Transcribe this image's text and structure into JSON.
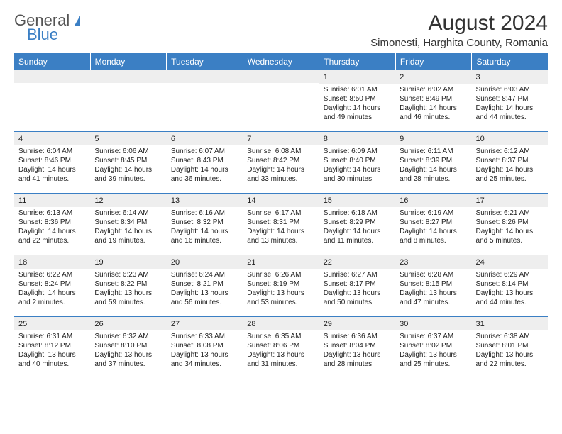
{
  "logo": {
    "line1": "General",
    "line2": "Blue"
  },
  "title": "August 2024",
  "subtitle": "Simonesti, Harghita County, Romania",
  "colors": {
    "header_bg": "#3b7fc4",
    "header_text": "#ffffff",
    "daynum_bg": "#eeeeee",
    "text": "#222222",
    "border": "#3b7fc4"
  },
  "weekdays": [
    "Sunday",
    "Monday",
    "Tuesday",
    "Wednesday",
    "Thursday",
    "Friday",
    "Saturday"
  ],
  "weeks": [
    [
      {
        "n": "",
        "sr": "",
        "ss": "",
        "dl": "",
        "dl2": ""
      },
      {
        "n": "",
        "sr": "",
        "ss": "",
        "dl": "",
        "dl2": ""
      },
      {
        "n": "",
        "sr": "",
        "ss": "",
        "dl": "",
        "dl2": ""
      },
      {
        "n": "",
        "sr": "",
        "ss": "",
        "dl": "",
        "dl2": ""
      },
      {
        "n": "1",
        "sr": "Sunrise: 6:01 AM",
        "ss": "Sunset: 8:50 PM",
        "dl": "Daylight: 14 hours",
        "dl2": "and 49 minutes."
      },
      {
        "n": "2",
        "sr": "Sunrise: 6:02 AM",
        "ss": "Sunset: 8:49 PM",
        "dl": "Daylight: 14 hours",
        "dl2": "and 46 minutes."
      },
      {
        "n": "3",
        "sr": "Sunrise: 6:03 AM",
        "ss": "Sunset: 8:47 PM",
        "dl": "Daylight: 14 hours",
        "dl2": "and 44 minutes."
      }
    ],
    [
      {
        "n": "4",
        "sr": "Sunrise: 6:04 AM",
        "ss": "Sunset: 8:46 PM",
        "dl": "Daylight: 14 hours",
        "dl2": "and 41 minutes."
      },
      {
        "n": "5",
        "sr": "Sunrise: 6:06 AM",
        "ss": "Sunset: 8:45 PM",
        "dl": "Daylight: 14 hours",
        "dl2": "and 39 minutes."
      },
      {
        "n": "6",
        "sr": "Sunrise: 6:07 AM",
        "ss": "Sunset: 8:43 PM",
        "dl": "Daylight: 14 hours",
        "dl2": "and 36 minutes."
      },
      {
        "n": "7",
        "sr": "Sunrise: 6:08 AM",
        "ss": "Sunset: 8:42 PM",
        "dl": "Daylight: 14 hours",
        "dl2": "and 33 minutes."
      },
      {
        "n": "8",
        "sr": "Sunrise: 6:09 AM",
        "ss": "Sunset: 8:40 PM",
        "dl": "Daylight: 14 hours",
        "dl2": "and 30 minutes."
      },
      {
        "n": "9",
        "sr": "Sunrise: 6:11 AM",
        "ss": "Sunset: 8:39 PM",
        "dl": "Daylight: 14 hours",
        "dl2": "and 28 minutes."
      },
      {
        "n": "10",
        "sr": "Sunrise: 6:12 AM",
        "ss": "Sunset: 8:37 PM",
        "dl": "Daylight: 14 hours",
        "dl2": "and 25 minutes."
      }
    ],
    [
      {
        "n": "11",
        "sr": "Sunrise: 6:13 AM",
        "ss": "Sunset: 8:36 PM",
        "dl": "Daylight: 14 hours",
        "dl2": "and 22 minutes."
      },
      {
        "n": "12",
        "sr": "Sunrise: 6:14 AM",
        "ss": "Sunset: 8:34 PM",
        "dl": "Daylight: 14 hours",
        "dl2": "and 19 minutes."
      },
      {
        "n": "13",
        "sr": "Sunrise: 6:16 AM",
        "ss": "Sunset: 8:32 PM",
        "dl": "Daylight: 14 hours",
        "dl2": "and 16 minutes."
      },
      {
        "n": "14",
        "sr": "Sunrise: 6:17 AM",
        "ss": "Sunset: 8:31 PM",
        "dl": "Daylight: 14 hours",
        "dl2": "and 13 minutes."
      },
      {
        "n": "15",
        "sr": "Sunrise: 6:18 AM",
        "ss": "Sunset: 8:29 PM",
        "dl": "Daylight: 14 hours",
        "dl2": "and 11 minutes."
      },
      {
        "n": "16",
        "sr": "Sunrise: 6:19 AM",
        "ss": "Sunset: 8:27 PM",
        "dl": "Daylight: 14 hours",
        "dl2": "and 8 minutes."
      },
      {
        "n": "17",
        "sr": "Sunrise: 6:21 AM",
        "ss": "Sunset: 8:26 PM",
        "dl": "Daylight: 14 hours",
        "dl2": "and 5 minutes."
      }
    ],
    [
      {
        "n": "18",
        "sr": "Sunrise: 6:22 AM",
        "ss": "Sunset: 8:24 PM",
        "dl": "Daylight: 14 hours",
        "dl2": "and 2 minutes."
      },
      {
        "n": "19",
        "sr": "Sunrise: 6:23 AM",
        "ss": "Sunset: 8:22 PM",
        "dl": "Daylight: 13 hours",
        "dl2": "and 59 minutes."
      },
      {
        "n": "20",
        "sr": "Sunrise: 6:24 AM",
        "ss": "Sunset: 8:21 PM",
        "dl": "Daylight: 13 hours",
        "dl2": "and 56 minutes."
      },
      {
        "n": "21",
        "sr": "Sunrise: 6:26 AM",
        "ss": "Sunset: 8:19 PM",
        "dl": "Daylight: 13 hours",
        "dl2": "and 53 minutes."
      },
      {
        "n": "22",
        "sr": "Sunrise: 6:27 AM",
        "ss": "Sunset: 8:17 PM",
        "dl": "Daylight: 13 hours",
        "dl2": "and 50 minutes."
      },
      {
        "n": "23",
        "sr": "Sunrise: 6:28 AM",
        "ss": "Sunset: 8:15 PM",
        "dl": "Daylight: 13 hours",
        "dl2": "and 47 minutes."
      },
      {
        "n": "24",
        "sr": "Sunrise: 6:29 AM",
        "ss": "Sunset: 8:14 PM",
        "dl": "Daylight: 13 hours",
        "dl2": "and 44 minutes."
      }
    ],
    [
      {
        "n": "25",
        "sr": "Sunrise: 6:31 AM",
        "ss": "Sunset: 8:12 PM",
        "dl": "Daylight: 13 hours",
        "dl2": "and 40 minutes."
      },
      {
        "n": "26",
        "sr": "Sunrise: 6:32 AM",
        "ss": "Sunset: 8:10 PM",
        "dl": "Daylight: 13 hours",
        "dl2": "and 37 minutes."
      },
      {
        "n": "27",
        "sr": "Sunrise: 6:33 AM",
        "ss": "Sunset: 8:08 PM",
        "dl": "Daylight: 13 hours",
        "dl2": "and 34 minutes."
      },
      {
        "n": "28",
        "sr": "Sunrise: 6:35 AM",
        "ss": "Sunset: 8:06 PM",
        "dl": "Daylight: 13 hours",
        "dl2": "and 31 minutes."
      },
      {
        "n": "29",
        "sr": "Sunrise: 6:36 AM",
        "ss": "Sunset: 8:04 PM",
        "dl": "Daylight: 13 hours",
        "dl2": "and 28 minutes."
      },
      {
        "n": "30",
        "sr": "Sunrise: 6:37 AM",
        "ss": "Sunset: 8:02 PM",
        "dl": "Daylight: 13 hours",
        "dl2": "and 25 minutes."
      },
      {
        "n": "31",
        "sr": "Sunrise: 6:38 AM",
        "ss": "Sunset: 8:01 PM",
        "dl": "Daylight: 13 hours",
        "dl2": "and 22 minutes."
      }
    ]
  ]
}
